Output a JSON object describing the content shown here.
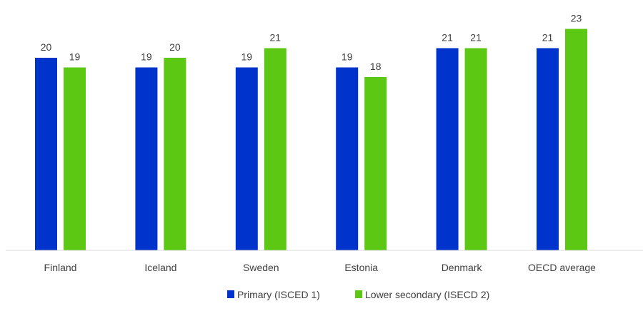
{
  "chart_data": {
    "type": "bar",
    "title": "",
    "xlabel": "",
    "ylabel": "",
    "categories": [
      "Finland",
      "Iceland",
      "Sweden",
      "Estonia",
      "Denmark",
      "OECD average"
    ],
    "series": [
      {
        "name": "Primary (ISCED 1)",
        "color": "#0033CC",
        "values": [
          20,
          19,
          19,
          19,
          21,
          21
        ]
      },
      {
        "name": "Lower secondary (ISECD 2)",
        "color": "#5CC814",
        "values": [
          19,
          20,
          21,
          18,
          21,
          23
        ]
      }
    ],
    "ylim": [
      0,
      26
    ],
    "grid": false,
    "data_labels": true,
    "legend_position": "bottom"
  }
}
